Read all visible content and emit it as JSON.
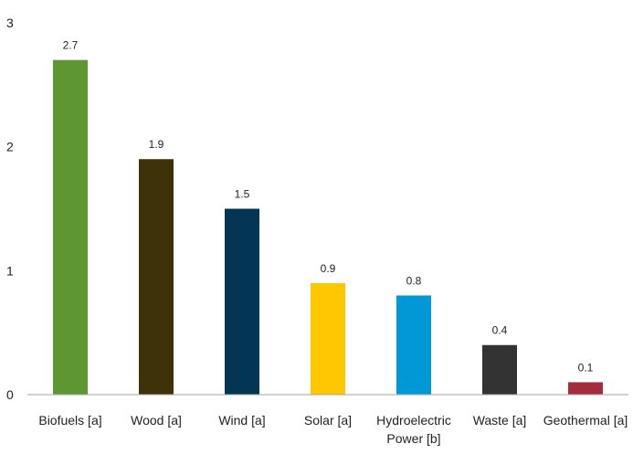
{
  "chart_data": {
    "type": "bar",
    "categories": [
      "Biofuels [a]",
      "Wood [a]",
      "Wind [a]",
      "Solar [a]",
      "Hydroelectric Power [b]",
      "Waste [a]",
      "Geothermal [a]"
    ],
    "category_lines": [
      [
        "Biofuels [a]"
      ],
      [
        "Wood [a]"
      ],
      [
        "Wind [a]"
      ],
      [
        "Solar [a]"
      ],
      [
        "Hydroelectric",
        "Power [b]"
      ],
      [
        "Waste [a]"
      ],
      [
        "Geothermal [a]"
      ]
    ],
    "values": [
      2.7,
      1.9,
      1.5,
      0.9,
      0.8,
      0.4,
      0.1
    ],
    "data_labels": [
      "2.7",
      "1.9",
      "1.5",
      "0.9",
      "0.8",
      "0.4",
      "0.1"
    ],
    "colors": [
      "#5e9732",
      "#3d3208",
      "#023652",
      "#fec700",
      "#0198d8",
      "#333333",
      "#a42d3d"
    ],
    "y_ticks": [
      0,
      1,
      2,
      3
    ],
    "ylim": [
      0,
      3
    ],
    "title": "",
    "xlabel": "",
    "ylabel": "",
    "grid": false,
    "legend": "none"
  }
}
